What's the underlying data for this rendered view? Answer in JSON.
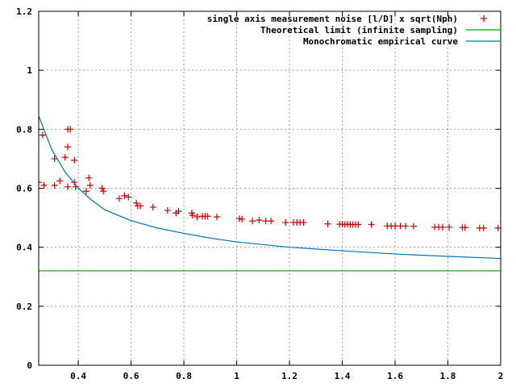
{
  "chart_data": {
    "type": "scatter",
    "title": "",
    "xlabel": "",
    "ylabel": "",
    "xlim": [
      0.25,
      2.0
    ],
    "ylim": [
      0,
      1.2
    ],
    "grid": true,
    "legend_position": "top-right",
    "x_ticks": [
      "0.4",
      "0.6",
      "0.8",
      "1",
      "1.2",
      "1.4",
      "1.6",
      "1.8",
      "2"
    ],
    "x_tick_values": [
      0.4,
      0.6,
      0.8,
      1.0,
      1.2,
      1.4,
      1.6,
      1.8,
      2.0
    ],
    "y_ticks": [
      "0",
      "0.2",
      "0.4",
      "0.6",
      "0.8",
      "1",
      "1.2"
    ],
    "y_tick_values": [
      0,
      0.2,
      0.4,
      0.6,
      0.8,
      1.0,
      1.2
    ],
    "series": [
      {
        "name": "single axis measurement noise [l/D] x sqrt(Nph)",
        "kind": "points",
        "color": "#cc0000",
        "points": [
          [
            0.25,
            0.62
          ],
          [
            0.265,
            0.78
          ],
          [
            0.27,
            0.61
          ],
          [
            0.31,
            0.7
          ],
          [
            0.31,
            0.61
          ],
          [
            0.33,
            0.625
          ],
          [
            0.35,
            0.705
          ],
          [
            0.36,
            0.74
          ],
          [
            0.36,
            0.8
          ],
          [
            0.37,
            0.8
          ],
          [
            0.36,
            0.605
          ],
          [
            0.385,
            0.695
          ],
          [
            0.385,
            0.62
          ],
          [
            0.39,
            0.605
          ],
          [
            0.43,
            0.59
          ],
          [
            0.44,
            0.635
          ],
          [
            0.445,
            0.61
          ],
          [
            0.49,
            0.6
          ],
          [
            0.495,
            0.59
          ],
          [
            0.555,
            0.565
          ],
          [
            0.575,
            0.575
          ],
          [
            0.59,
            0.57
          ],
          [
            0.62,
            0.55
          ],
          [
            0.625,
            0.54
          ],
          [
            0.635,
            0.54
          ],
          [
            0.683,
            0.536
          ],
          [
            0.738,
            0.525
          ],
          [
            0.77,
            0.516
          ],
          [
            0.78,
            0.522
          ],
          [
            0.83,
            0.516
          ],
          [
            0.833,
            0.508
          ],
          [
            0.85,
            0.503
          ],
          [
            0.87,
            0.505
          ],
          [
            0.88,
            0.505
          ],
          [
            0.89,
            0.505
          ],
          [
            0.925,
            0.503
          ],
          [
            1.01,
            0.497
          ],
          [
            1.02,
            0.495
          ],
          [
            1.06,
            0.489
          ],
          [
            1.085,
            0.492
          ],
          [
            1.11,
            0.489
          ],
          [
            1.13,
            0.489
          ],
          [
            1.185,
            0.484
          ],
          [
            1.215,
            0.484
          ],
          [
            1.228,
            0.484
          ],
          [
            1.24,
            0.484
          ],
          [
            1.253,
            0.484
          ],
          [
            1.345,
            0.479
          ],
          [
            1.39,
            0.478
          ],
          [
            1.4,
            0.478
          ],
          [
            1.41,
            0.477
          ],
          [
            1.42,
            0.478
          ],
          [
            1.43,
            0.477
          ],
          [
            1.44,
            0.477
          ],
          [
            1.45,
            0.477
          ],
          [
            1.46,
            0.477
          ],
          [
            1.51,
            0.477
          ],
          [
            1.57,
            0.472
          ],
          [
            1.585,
            0.472
          ],
          [
            1.6,
            0.472
          ],
          [
            1.62,
            0.472
          ],
          [
            1.64,
            0.472
          ],
          [
            1.67,
            0.471
          ],
          [
            1.75,
            0.468
          ],
          [
            1.765,
            0.468
          ],
          [
            1.78,
            0.468
          ],
          [
            1.805,
            0.468
          ],
          [
            1.855,
            0.467
          ],
          [
            1.865,
            0.467
          ],
          [
            1.92,
            0.465
          ],
          [
            1.935,
            0.465
          ],
          [
            1.99,
            0.465
          ]
        ]
      },
      {
        "name": "Theoretical limit (infinite sampling)",
        "kind": "line",
        "color": "#00a000",
        "points": [
          [
            0.25,
            0.32
          ],
          [
            2.0,
            0.32
          ]
        ]
      },
      {
        "name": "Monochromatic empirical curve",
        "kind": "line",
        "color": "#0072bd",
        "points": [
          [
            0.25,
            0.845
          ],
          [
            0.3,
            0.73
          ],
          [
            0.35,
            0.655
          ],
          [
            0.4,
            0.6
          ],
          [
            0.45,
            0.56
          ],
          [
            0.5,
            0.527
          ],
          [
            0.6,
            0.49
          ],
          [
            0.7,
            0.465
          ],
          [
            0.8,
            0.447
          ],
          [
            0.9,
            0.431
          ],
          [
            1.0,
            0.418
          ],
          [
            1.2,
            0.4
          ],
          [
            1.4,
            0.388
          ],
          [
            1.6,
            0.377
          ],
          [
            1.8,
            0.369
          ],
          [
            2.0,
            0.362
          ]
        ]
      }
    ]
  }
}
